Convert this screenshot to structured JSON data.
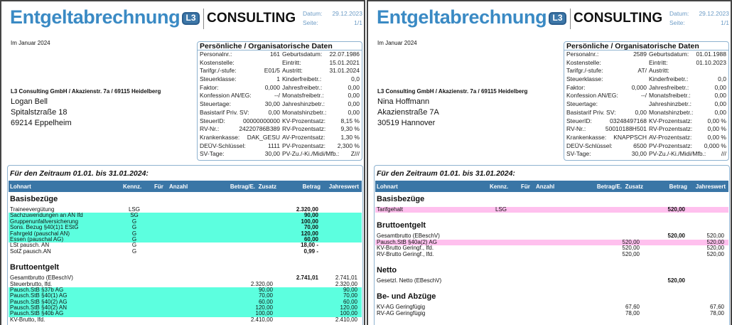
{
  "colors": {
    "title": "#3a8ac4",
    "header": "#3a76a6",
    "highlight_cyan": "#5cffdf",
    "highlight_pink": "#ffc0ee"
  },
  "columns": [
    "Lohnart",
    "Kennz.",
    "Für",
    "Anzahl",
    "Betrag/E.",
    "Zusatz",
    "Betrag",
    "Jahreswert"
  ],
  "documents": [
    {
      "title": "Entgeltabrechnung",
      "logo": {
        "mark": "L3",
        "text": "CONSULTING"
      },
      "datum_label": "Datum:",
      "datum": "29.12.2023",
      "seite_label": "Seite:",
      "seite": "1/1",
      "month": "Im Januar 2024",
      "company": "L3 Consulting GmbH / Akazienstr. 7a / 69115 Heidelberg",
      "address": [
        "Logan Bell",
        "Spitalstzraße 18",
        "69214 Eppelheim"
      ],
      "personal_title": "Persönliche / Organisatorische Daten",
      "personal": [
        [
          "Personalnr.:",
          "161",
          "Geburtsdatum:",
          "22.07.1986"
        ],
        [
          "Kostenstelle:",
          "",
          "Eintritt:",
          "15.01.2021"
        ],
        [
          "Tarifgr./-stufe:",
          "E01/5",
          "Austritt:",
          "31.01.2024"
        ],
        [
          "Steuerklasse:",
          "1",
          "Kinderfreibetr.:",
          "0,0"
        ],
        [
          "Faktor:",
          "0,000",
          "Jahresfreibetr.:",
          "0,00"
        ],
        [
          "Konfession AN/EG:",
          "--/",
          "Monatsfreibetr.:",
          "0,00"
        ],
        [
          "Steuertage:",
          "30,00",
          "Jahreshinzbetr.:",
          "0,00"
        ],
        [
          "Basistarif Priv. SV:",
          "0,00",
          "Monatshinzbetr.:",
          "0,00"
        ],
        [
          "SteuerID:",
          "00000000000",
          "KV-Prozentsatz:",
          "8,15 %"
        ],
        [
          "RV-Nr.:",
          "24220786B389",
          "RV-Prozentsatz:",
          "9,30 %"
        ],
        [
          "Krankenkasse:",
          "DAK_GESU",
          "AV-Prozentsatz:",
          "1,30 %"
        ],
        [
          "DEÜV-Schlüssel:",
          "1111",
          "PV-Prozentsatz:",
          "2,300 %"
        ],
        [
          "SV-Tage:",
          "30,00",
          "PV-Zu./-Ki./Midi/Mfb.:",
          "Z///"
        ]
      ],
      "period": "Für den Zeitraum 01.01. bis 31.01.2024:",
      "sections": [
        {
          "title": "Basisbezüge",
          "rows": [
            {
              "name": "Traineevergütung",
              "kennz": "LSG",
              "betrag": "2.320,00"
            },
            {
              "name": "Sachzuwendungen an AN lfd",
              "kennz": "SG",
              "betrag": "90,00",
              "highlight": "cyan"
            },
            {
              "name": "Gruppenunfallversicherung",
              "kennz": "G",
              "betrag": "100,00",
              "highlight": "cyan"
            },
            {
              "name": "Sons. Bezug §40(1)1 EStG",
              "kennz": "G",
              "betrag": "70,00",
              "highlight": "cyan"
            },
            {
              "name": "Fahrgeld (pauschal AN)",
              "kennz": "G",
              "betrag": "120,00",
              "highlight": "cyan"
            },
            {
              "name": "Essen (pauschal AG)",
              "kennz": "G",
              "betrag": "60,00",
              "highlight": "cyan"
            },
            {
              "name": "LSt pausch. AN",
              "kennz": "G",
              "betrag": "18,00 -"
            },
            {
              "name": "SolZ pausch.AN",
              "kennz": "G",
              "betrag": "0,99 -"
            }
          ]
        },
        {
          "title": "Bruttoentgelt",
          "rows": [
            {
              "name": "Gesamtbrutto (EBeschV)",
              "betrag": "2.741,01",
              "jahr": "2.741,01"
            },
            {
              "name": "Steuerbrutto, lfd.",
              "zusatz": "2.320,00",
              "jahr": "2.320,00"
            },
            {
              "name": "Pausch.StB  §37b AG",
              "zusatz": "90,00",
              "jahr": "90,00",
              "highlight": "cyan"
            },
            {
              "name": "Pausch.StB  §40(1) AG",
              "zusatz": "70,00",
              "jahr": "70,00",
              "highlight": "cyan"
            },
            {
              "name": "Pausch.StB  §40(2) AG",
              "zusatz": "60,00",
              "jahr": "60,00",
              "highlight": "cyan"
            },
            {
              "name": "Pausch.StB  §40(2) AN",
              "zusatz": "120,00",
              "jahr": "120,00",
              "highlight": "cyan"
            },
            {
              "name": "Pausch.StB  §40b AG",
              "zusatz": "100,00",
              "jahr": "100,00",
              "highlight": "cyan"
            },
            {
              "name": "KV-Brutto, lfd.",
              "zusatz": "2.410,00",
              "jahr": "2.410,00"
            }
          ]
        }
      ]
    },
    {
      "title": "Entgeltabrechnung",
      "logo": {
        "mark": "L3",
        "text": "CONSULTING"
      },
      "datum_label": "Datum:",
      "datum": "29.12.2023",
      "seite_label": "Seite:",
      "seite": "1/1",
      "month": "Im Januar 2024",
      "company": "L3 Consulting GmbH / Akazienstr. 7a / 69115 Heidelberg",
      "address": [
        "Nina Hoffmann",
        "Akazienstraße 7A",
        "30519 Hannover"
      ],
      "personal_title": "Persönliche / Organisatorische Daten",
      "personal": [
        [
          "Personalnr.:",
          "2589",
          "Geburtsdatum:",
          "01.01.1988"
        ],
        [
          "Kostenstelle:",
          "",
          "Eintritt:",
          "01.10.2023"
        ],
        [
          "Tarifgr./-stufe:",
          "AT/",
          "Austritt:",
          ""
        ],
        [
          "Steuerklasse:",
          "",
          "Kinderfreibetr.:",
          "0,0"
        ],
        [
          "Faktor:",
          "0,000",
          "Jahresfreibetr.:",
          "0,00"
        ],
        [
          "Konfession AN/EG:",
          "--/",
          "Monatsfreibetr.:",
          "0,00"
        ],
        [
          "Steuertage:",
          "",
          "Jahreshinzbetr.:",
          "0,00"
        ],
        [
          "Basistarif Priv. SV:",
          "0,00",
          "Monatshinzbetr.:",
          "0,00"
        ],
        [
          "SteuerID:",
          "03248497168",
          "KV-Prozentsatz:",
          "0,00 %"
        ],
        [
          "RV-Nr.:",
          "50010188H501",
          "RV-Prozentsatz:",
          "0,00 %"
        ],
        [
          "Krankenkasse:",
          "KNAPPSCH",
          "AV-Prozentsatz:",
          "0,00 %"
        ],
        [
          "DEÜV-Schlüssel:",
          "6500",
          "PV-Prozentsatz:",
          "0,000 %"
        ],
        [
          "SV-Tage:",
          "30,00",
          "PV-Zu./-Ki./Midi/Mfb.:",
          "///"
        ]
      ],
      "period": "Für den Zeitraum 01.01. bis 31.01.2024:",
      "sections": [
        {
          "title": "Basisbezüge",
          "rows": [
            {
              "name": "Tarifgehalt",
              "kennz": "LSG",
              "betrag": "520,00",
              "highlight": "pink"
            }
          ]
        },
        {
          "title": "Bruttoentgelt",
          "rows": [
            {
              "name": "Gesamtbrutto (EBeschV)",
              "betrag": "520,00",
              "jahr": "520,00"
            },
            {
              "name": "Pausch.StB  §40a(2) AG",
              "zusatz": "520,00",
              "jahr": "520,00",
              "highlight": "pink"
            },
            {
              "name": "KV-Brutto Geringf., lfd.",
              "zusatz": "520,00",
              "jahr": "520,00"
            },
            {
              "name": "RV-Brutto Geringf., lfd.",
              "zusatz": "520,00",
              "jahr": "520,00"
            }
          ]
        },
        {
          "title": "Netto",
          "rows": [
            {
              "name": "Gesetzl. Netto (EBeschV)",
              "betrag": "520,00"
            }
          ]
        },
        {
          "title": "Be- und Abzüge",
          "rows": [
            {
              "name": "KV-AG Geringfügig",
              "zusatz": "67,60",
              "jahr": "67,60"
            },
            {
              "name": "RV-AG Geringfügig",
              "zusatz": "78,00",
              "jahr": "78,00"
            }
          ]
        }
      ]
    }
  ]
}
